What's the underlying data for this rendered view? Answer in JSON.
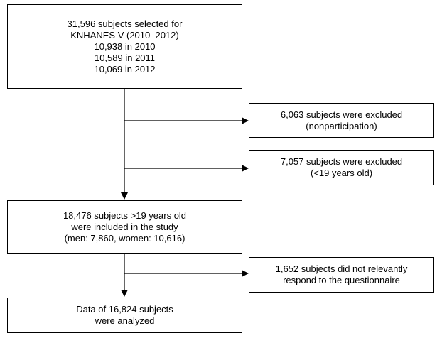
{
  "flowchart": {
    "box_selected": {
      "lines": [
        "31,596 subjects selected for",
        "KNHANES V (2010–2012)",
        "10,938 in 2010",
        "10,589 in 2011",
        "10,069 in 2012"
      ]
    },
    "box_excluded_nonparticipation": {
      "lines": [
        "6,063 subjects were excluded",
        "(nonparticipation)"
      ]
    },
    "box_excluded_age": {
      "lines": [
        "7,057 subjects were excluded",
        "(<19 years old)"
      ]
    },
    "box_included": {
      "lines": [
        "18,476 subjects >19 years old",
        "were included in the study",
        "(men: 7,860, women: 10,616)"
      ]
    },
    "box_no_response": {
      "lines": [
        "1,652 subjects did not relevantly",
        "respond to the questionnaire"
      ]
    },
    "box_analyzed": {
      "lines": [
        "Data of 16,824 subjects",
        "were analyzed"
      ]
    }
  }
}
